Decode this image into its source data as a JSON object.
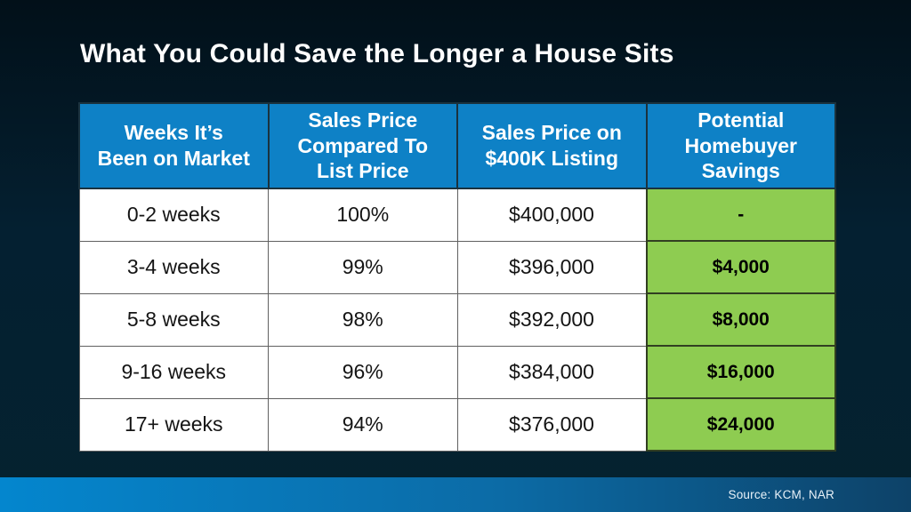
{
  "title": "What You Could Save the Longer a House Sits",
  "table": {
    "headers": [
      [
        "Weeks It’s",
        "Been on Market"
      ],
      [
        "Sales Price",
        "Compared To",
        "List Price"
      ],
      [
        "Sales Price on",
        "$400K Listing"
      ],
      [
        "Potential",
        "Homebuyer",
        "Savings"
      ]
    ],
    "rows": [
      [
        "0-2 weeks",
        "100%",
        "$400,000",
        "-"
      ],
      [
        "3-4 weeks",
        "99%",
        "$396,000",
        "$4,000"
      ],
      [
        "5-8 weeks",
        "98%",
        "$392,000",
        "$8,000"
      ],
      [
        "9-16 weeks",
        "96%",
        "$384,000",
        "$16,000"
      ],
      [
        "17+ weeks",
        "94%",
        "$376,000",
        "$24,000"
      ]
    ]
  },
  "footer": {
    "source": "Source: KCM, NAR"
  },
  "colors": {
    "background": "#04202c",
    "header_blue": "#0e81c6",
    "savings_green": "#8ecc51",
    "footer_gradient_left": "#0486ce",
    "footer_gradient_right": "#0d4268",
    "title_text": "#ffffff"
  },
  "chart_data": {
    "type": "table",
    "title": "What You Could Save the Longer a House Sits",
    "columns": [
      "Weeks It’s Been on Market",
      "Sales Price Compared To List Price",
      "Sales Price on $400K Listing",
      "Potential Homebuyer Savings"
    ],
    "rows": [
      [
        "0-2 weeks",
        "100%",
        "$400,000",
        "-"
      ],
      [
        "3-4 weeks",
        "99%",
        "$396,000",
        "$4,000"
      ],
      [
        "5-8 weeks",
        "98%",
        "$392,000",
        "$8,000"
      ],
      [
        "9-16 weeks",
        "96%",
        "$384,000",
        "$16,000"
      ],
      [
        "17+ weeks",
        "94%",
        "$376,000",
        "$24,000"
      ]
    ],
    "source": "Source: KCM, NAR"
  }
}
